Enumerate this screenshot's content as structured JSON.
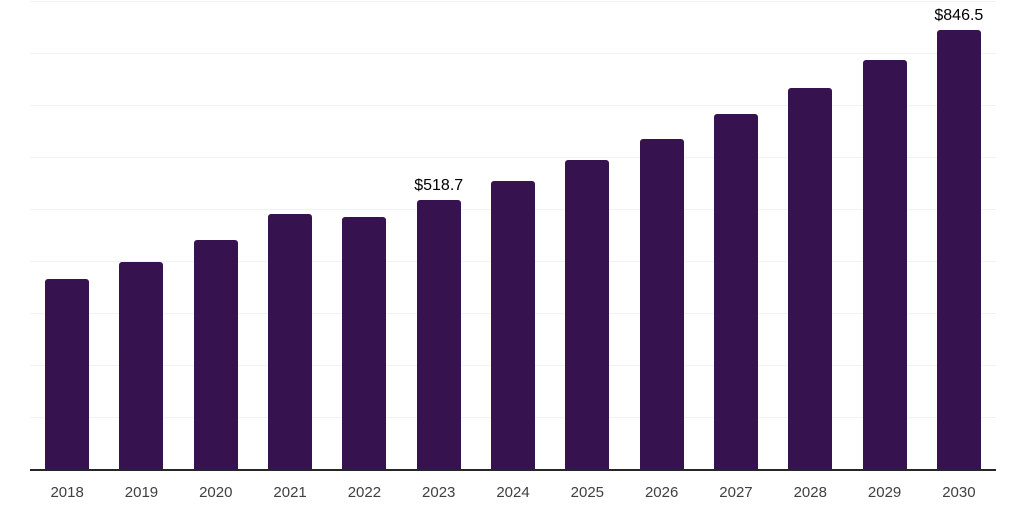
{
  "chart": {
    "background_color": "#ffffff",
    "bar_color": "#36134e",
    "gridline_color": "#f2f2f2",
    "axis_line_color": "#262626",
    "tick_label_color": "#404040",
    "data_label_color": "#000000"
  },
  "chart_data": {
    "type": "bar",
    "title": "",
    "xlabel": "",
    "ylabel": "",
    "categories": [
      "2018",
      "2019",
      "2020",
      "2021",
      "2022",
      "2023",
      "2024",
      "2025",
      "2026",
      "2027",
      "2028",
      "2029",
      "2030"
    ],
    "values": [
      367,
      400,
      442,
      492,
      487,
      518.7,
      555,
      596,
      636,
      684,
      734,
      789,
      846.5
    ],
    "data_labels": [
      "",
      "",
      "",
      "",
      "",
      "$518.7",
      "",
      "",
      "",
      "",
      "",
      "",
      "$846.5"
    ],
    "ylim": [
      0,
      900
    ],
    "grid_step": 100,
    "grid": "horizontal",
    "y_tick_labels_visible": false,
    "legend_position": "none"
  }
}
